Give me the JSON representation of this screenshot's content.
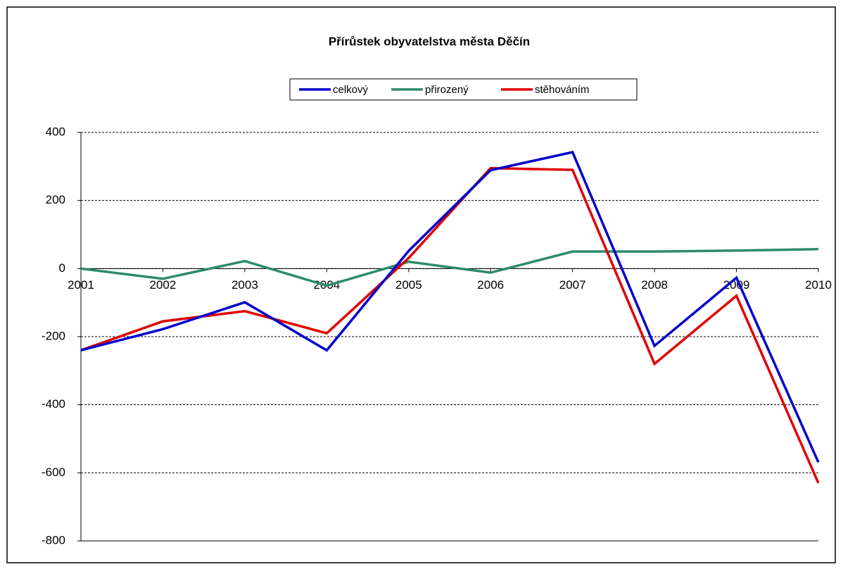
{
  "chart_data": {
    "type": "line",
    "title": "Přírůstek obyvatelstva města Děčín",
    "categories": [
      "2001",
      "2002",
      "2003",
      "2004",
      "2005",
      "2006",
      "2007",
      "2008",
      "2009",
      "2010"
    ],
    "series": [
      {
        "name": "celkový",
        "color": "#0000cc",
        "values": [
          -240,
          -178,
          -99,
          -240,
          52,
          289,
          342,
          -227,
          -27,
          -569
        ]
      },
      {
        "name": "přirozený",
        "color": "#2e8b6a",
        "values": [
          0,
          -30,
          22,
          -50,
          20,
          -12,
          50,
          50,
          53,
          57
        ]
      },
      {
        "name": "stěhováním",
        "color": "#e00000",
        "values": [
          -240,
          -155,
          -125,
          -190,
          31,
          295,
          290,
          -280,
          -80,
          -630
        ]
      }
    ],
    "ylim": [
      -800,
      400
    ],
    "yticks": [
      -800,
      -600,
      -400,
      -200,
      0,
      200,
      400
    ],
    "grid": true,
    "legend": "top"
  }
}
